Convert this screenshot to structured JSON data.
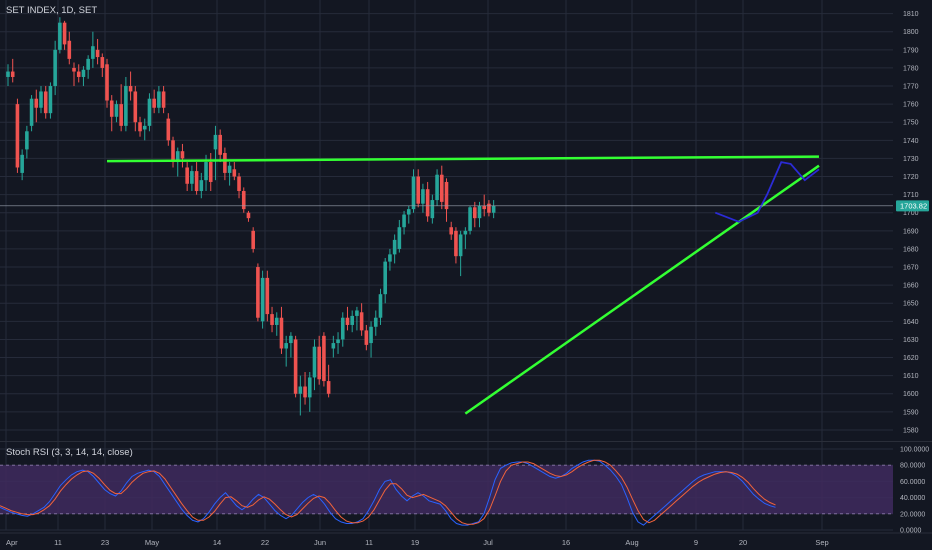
{
  "header": {
    "symbol_line": "SET INDEX, 1D, SET"
  },
  "colors": {
    "background": "#131722",
    "grid": "#262b3a",
    "up_candle": "#26a69a",
    "down_candle": "#ef5350",
    "trendline": "#33ff33",
    "projection": "#2b2bd6",
    "price_tag_bg": "#26a69a",
    "rsi_band": "#3f2a5e",
    "rsi_k": "#2962ff",
    "rsi_d": "#f2633b",
    "axis_text": "#b2b5be"
  },
  "chart_data": [
    {
      "type": "candlestick",
      "title": "SET INDEX, 1D, SET",
      "ylim": [
        1575,
        1812
      ],
      "x_ticks": [
        "Apr",
        "11",
        "23",
        "May",
        "14",
        "22",
        "Jun",
        "11",
        "19",
        "Jul",
        "16",
        "Aug",
        "9",
        "20",
        "Sep"
      ],
      "y_ticks": [
        1580,
        1590,
        1600,
        1610,
        1620,
        1630,
        1640,
        1650,
        1660,
        1670,
        1680,
        1690,
        1700,
        1710,
        1720,
        1730,
        1740,
        1750,
        1760,
        1770,
        1780,
        1790,
        1800,
        1810
      ],
      "last_price_label": "1703.82",
      "last_price": 1703.82,
      "candles": [
        [
          1775,
          1782,
          1770,
          1778
        ],
        [
          1778,
          1785,
          1772,
          1775
        ],
        [
          1760,
          1763,
          1722,
          1725
        ],
        [
          1722,
          1735,
          1718,
          1732
        ],
        [
          1735,
          1748,
          1730,
          1745
        ],
        [
          1748,
          1765,
          1745,
          1763
        ],
        [
          1763,
          1768,
          1750,
          1758
        ],
        [
          1758,
          1770,
          1755,
          1767
        ],
        [
          1767,
          1770,
          1752,
          1755
        ],
        [
          1755,
          1772,
          1752,
          1770
        ],
        [
          1770,
          1795,
          1765,
          1790
        ],
        [
          1790,
          1808,
          1788,
          1805
        ],
        [
          1805,
          1806,
          1790,
          1793
        ],
        [
          1795,
          1800,
          1782,
          1785
        ],
        [
          1780,
          1783,
          1770,
          1778
        ],
        [
          1778,
          1782,
          1772,
          1775
        ],
        [
          1775,
          1781,
          1770,
          1779
        ],
        [
          1779,
          1787,
          1774,
          1785
        ],
        [
          1785,
          1800,
          1780,
          1792
        ],
        [
          1790,
          1796,
          1782,
          1786
        ],
        [
          1786,
          1788,
          1775,
          1780
        ],
        [
          1782,
          1785,
          1758,
          1762
        ],
        [
          1762,
          1765,
          1745,
          1753
        ],
        [
          1753,
          1762,
          1750,
          1760
        ],
        [
          1760,
          1771,
          1745,
          1748
        ],
        [
          1748,
          1775,
          1745,
          1770
        ],
        [
          1770,
          1778,
          1762,
          1767
        ],
        [
          1767,
          1770,
          1745,
          1750
        ],
        [
          1750,
          1753,
          1742,
          1745
        ],
        [
          1746,
          1752,
          1740,
          1748
        ],
        [
          1748,
          1766,
          1745,
          1763
        ],
        [
          1763,
          1768,
          1755,
          1758
        ],
        [
          1758,
          1770,
          1755,
          1767
        ],
        [
          1767,
          1770,
          1755,
          1758
        ],
        [
          1752,
          1755,
          1737,
          1740
        ],
        [
          1740,
          1742,
          1725,
          1728
        ],
        [
          1728,
          1736,
          1720,
          1734
        ],
        [
          1734,
          1738,
          1725,
          1730
        ],
        [
          1725,
          1728,
          1712,
          1716
        ],
        [
          1716,
          1726,
          1712,
          1723
        ],
        [
          1723,
          1728,
          1710,
          1712
        ],
        [
          1712,
          1722,
          1708,
          1718
        ],
        [
          1718,
          1732,
          1712,
          1728
        ],
        [
          1728,
          1733,
          1712,
          1717
        ],
        [
          1735,
          1748,
          1718,
          1743
        ],
        [
          1743,
          1746,
          1728,
          1732
        ],
        [
          1733,
          1736,
          1718,
          1722
        ],
        [
          1722,
          1728,
          1715,
          1726
        ],
        [
          1724,
          1728,
          1718,
          1720
        ],
        [
          1720,
          1722,
          1708,
          1712
        ],
        [
          1712,
          1714,
          1700,
          1702
        ],
        [
          1700,
          1701,
          1695,
          1697
        ],
        [
          1690,
          1692,
          1678,
          1680
        ],
        [
          1670,
          1672,
          1640,
          1642
        ],
        [
          1640,
          1668,
          1636,
          1664
        ],
        [
          1664,
          1668,
          1640,
          1644
        ],
        [
          1644,
          1648,
          1634,
          1638
        ],
        [
          1638,
          1645,
          1632,
          1642
        ],
        [
          1642,
          1648,
          1622,
          1625
        ],
        [
          1625,
          1632,
          1615,
          1628
        ],
        [
          1628,
          1634,
          1620,
          1632
        ],
        [
          1630,
          1632,
          1598,
          1600
        ],
        [
          1600,
          1610,
          1588,
          1604
        ],
        [
          1604,
          1612,
          1594,
          1598
        ],
        [
          1598,
          1612,
          1590,
          1609
        ],
        [
          1609,
          1630,
          1602,
          1626
        ],
        [
          1626,
          1632,
          1605,
          1608
        ],
        [
          1632,
          1634,
          1604,
          1607
        ],
        [
          1607,
          1616,
          1598,
          1600
        ],
        [
          1625,
          1632,
          1620,
          1628
        ],
        [
          1628,
          1634,
          1622,
          1630
        ],
        [
          1630,
          1645,
          1626,
          1642
        ],
        [
          1642,
          1648,
          1635,
          1638
        ],
        [
          1638,
          1646,
          1634,
          1643
        ],
        [
          1643,
          1648,
          1635,
          1646
        ],
        [
          1645,
          1650,
          1632,
          1635
        ],
        [
          1635,
          1638,
          1624,
          1627
        ],
        [
          1628,
          1640,
          1620,
          1637
        ],
        [
          1637,
          1646,
          1632,
          1642
        ],
        [
          1642,
          1658,
          1638,
          1655
        ],
        [
          1655,
          1675,
          1650,
          1673
        ],
        [
          1673,
          1680,
          1668,
          1677
        ],
        [
          1677,
          1688,
          1672,
          1685
        ],
        [
          1680,
          1696,
          1678,
          1692
        ],
        [
          1692,
          1701,
          1688,
          1699
        ],
        [
          1699,
          1704,
          1694,
          1702
        ],
        [
          1702,
          1724,
          1700,
          1720
        ],
        [
          1720,
          1724,
          1703,
          1705
        ],
        [
          1705,
          1716,
          1700,
          1713
        ],
        [
          1713,
          1717,
          1695,
          1698
        ],
        [
          1697,
          1710,
          1694,
          1707
        ],
        [
          1707,
          1724,
          1704,
          1721
        ],
        [
          1721,
          1726,
          1702,
          1706
        ],
        [
          1717,
          1719,
          1695,
          1702
        ],
        [
          1692,
          1695,
          1685,
          1688
        ],
        [
          1690,
          1692,
          1672,
          1676
        ],
        [
          1676,
          1690,
          1665,
          1688
        ],
        [
          1688,
          1692,
          1680,
          1690
        ],
        [
          1690,
          1704,
          1688,
          1703
        ],
        [
          1703,
          1706,
          1692,
          1697
        ],
        [
          1697,
          1706,
          1692,
          1704
        ],
        [
          1704,
          1710,
          1698,
          1702
        ],
        [
          1705,
          1707,
          1698,
          1700
        ],
        [
          1700,
          1707,
          1697,
          1704
        ]
      ],
      "horizontal_line": {
        "from_index": 21,
        "to_index": 172,
        "value": 1728.5,
        "value_end": 1731
      },
      "rising_trendline": {
        "from_index": 97,
        "from_value": 1589,
        "to_index": 172,
        "to_value": 1726
      },
      "projection_path": [
        [
          150,
          1700
        ],
        [
          155,
          1695
        ],
        [
          159,
          1700
        ],
        [
          161,
          1710
        ],
        [
          164,
          1728
        ],
        [
          166,
          1727
        ],
        [
          169,
          1718
        ],
        [
          172,
          1724
        ]
      ]
    },
    {
      "type": "line",
      "title": "Stoch RSI (3, 3, 14, 14, close)",
      "ylim": [
        0,
        100
      ],
      "y_ticks": [
        "100.0000",
        "80.0000",
        "60.0000",
        "40.0000",
        "20.0000",
        "0.0000"
      ],
      "band": [
        20,
        80
      ],
      "series": [
        {
          "values": [
            28,
            25,
            22,
            20,
            18,
            17,
            20,
            24,
            28,
            35,
            45,
            55,
            62,
            68,
            72,
            74,
            72,
            66,
            58,
            50,
            45,
            42,
            48,
            58,
            66,
            70,
            72,
            74,
            72,
            66,
            56,
            46,
            36,
            26,
            18,
            12,
            10,
            14,
            22,
            32,
            40,
            46,
            38,
            30,
            25,
            30,
            38,
            44,
            40,
            32,
            24,
            18,
            14,
            18,
            26,
            34,
            40,
            44,
            40,
            32,
            22,
            14,
            10,
            8,
            8,
            10,
            14,
            24,
            36,
            50,
            60,
            62,
            50,
            42,
            36,
            42,
            46,
            42,
            36,
            34,
            32,
            24,
            14,
            8,
            6,
            6,
            8,
            10,
            20,
            40,
            62,
            76,
            80,
            83,
            84,
            84,
            82,
            78,
            74,
            70,
            66,
            64,
            66,
            70,
            76,
            80,
            84,
            86,
            86,
            85,
            80,
            74,
            66,
            56,
            40,
            22,
            10,
            6,
            12,
            18,
            24,
            30,
            36,
            42,
            48,
            54,
            60,
            65,
            68,
            70,
            72,
            72,
            72,
            70,
            66,
            60,
            52,
            44,
            38,
            33,
            30,
            28
          ]
        },
        {
          "values": [
            30,
            27,
            24,
            22,
            20,
            19,
            19,
            21,
            25,
            30,
            38,
            48,
            56,
            63,
            68,
            72,
            73,
            70,
            64,
            56,
            49,
            45,
            45,
            51,
            59,
            65,
            70,
            72,
            73,
            70,
            63,
            53,
            43,
            33,
            24,
            16,
            12,
            12,
            16,
            23,
            32,
            40,
            41,
            36,
            30,
            28,
            31,
            37,
            41,
            38,
            32,
            25,
            19,
            16,
            19,
            26,
            33,
            39,
            42,
            40,
            33,
            24,
            16,
            11,
            9,
            9,
            11,
            16,
            25,
            37,
            49,
            57,
            57,
            51,
            43,
            40,
            42,
            44,
            41,
            38,
            35,
            30,
            22,
            14,
            9,
            7,
            7,
            9,
            14,
            25,
            42,
            60,
            73,
            80,
            82,
            84,
            84,
            82,
            78,
            74,
            70,
            67,
            66,
            68,
            72,
            77,
            81,
            84,
            86,
            86,
            84,
            80,
            73,
            65,
            53,
            38,
            24,
            13,
            9,
            12,
            18,
            24,
            30,
            36,
            42,
            48,
            54,
            59,
            63,
            66,
            69,
            71,
            72,
            71,
            69,
            65,
            59,
            51,
            44,
            38,
            34,
            31
          ]
        }
      ]
    }
  ]
}
